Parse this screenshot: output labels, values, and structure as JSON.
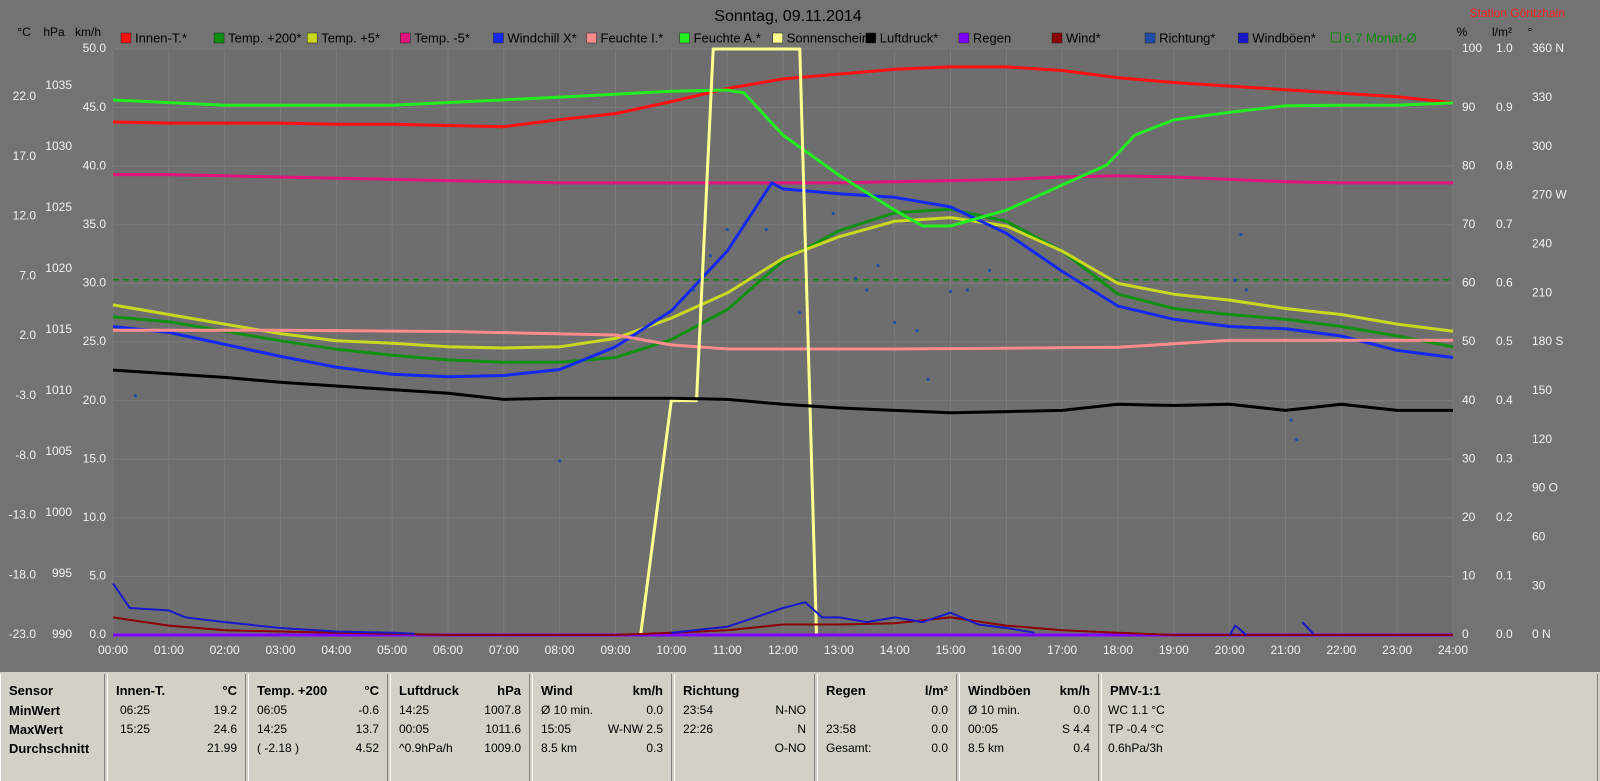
{
  "chart_data": {
    "type": "line",
    "title": "Sonntag, 09.11.2014",
    "station": "Station Göritzhain",
    "xlim": [
      0,
      24
    ],
    "xticks": [
      {
        "value": 0,
        "label": "00:00"
      },
      {
        "value": 1,
        "label": "01:00"
      },
      {
        "value": 2,
        "label": "02:00"
      },
      {
        "value": 3,
        "label": "03:00"
      },
      {
        "value": 4,
        "label": "04:00"
      },
      {
        "value": 5,
        "label": "05:00"
      },
      {
        "value": 6,
        "label": "06:00"
      },
      {
        "value": 7,
        "label": "07:00"
      },
      {
        "value": 8,
        "label": "08:00"
      },
      {
        "value": 9,
        "label": "09:00"
      },
      {
        "value": 10,
        "label": "10:00"
      },
      {
        "value": 11,
        "label": "11:00"
      },
      {
        "value": 12,
        "label": "12:00"
      },
      {
        "value": 13,
        "label": "13:00"
      },
      {
        "value": 14,
        "label": "14:00"
      },
      {
        "value": 15,
        "label": "15:00"
      },
      {
        "value": 16,
        "label": "16:00"
      },
      {
        "value": 17,
        "label": "17:00"
      },
      {
        "value": 18,
        "label": "18:00"
      },
      {
        "value": 19,
        "label": "19:00"
      },
      {
        "value": 20,
        "label": "20:00"
      },
      {
        "value": 21,
        "label": "21:00"
      },
      {
        "value": 22,
        "label": "22:00"
      },
      {
        "value": 23,
        "label": "23:00"
      },
      {
        "value": 24,
        "label": "24:00"
      }
    ],
    "grid": true,
    "y_axes": [
      {
        "unit": "°C",
        "lim": [
          -23,
          26
        ],
        "ticks": [
          {
            "value": -23,
            "label": "-23.0"
          },
          {
            "value": -18,
            "label": "-18.0"
          },
          {
            "value": -13,
            "label": "-13.0"
          },
          {
            "value": -8,
            "label": "-8.0"
          },
          {
            "value": -3,
            "label": "-3.0"
          },
          {
            "value": 2,
            "label": "2.0"
          },
          {
            "value": 7,
            "label": "7.0"
          },
          {
            "value": 12,
            "label": "12.0"
          },
          {
            "value": 17,
            "label": "17.0"
          },
          {
            "value": 22,
            "label": "22.0"
          }
        ]
      },
      {
        "unit": "hPa",
        "lim": [
          990,
          1038
        ],
        "ticks": [
          990,
          995,
          1000,
          1005,
          1010,
          1015,
          1020,
          1025,
          1030,
          1035
        ]
      },
      {
        "unit": "km/h",
        "lim": [
          0,
          50
        ],
        "grid": true,
        "ticks": [
          {
            "value": 0,
            "label": "0.0"
          },
          {
            "value": 5,
            "label": "5.0"
          },
          {
            "value": 10,
            "label": "10.0"
          },
          {
            "value": 15,
            "label": "15.0"
          },
          {
            "value": 20,
            "label": "20.0"
          },
          {
            "value": 25,
            "label": "25.0"
          },
          {
            "value": 30,
            "label": "30.0"
          },
          {
            "value": 35,
            "label": "35.0"
          },
          {
            "value": 40,
            "label": "40.0"
          },
          {
            "value": 45,
            "label": "45.0"
          },
          {
            "value": 50,
            "label": "50.0"
          }
        ]
      },
      {
        "unit": "%",
        "lim": [
          0,
          100
        ],
        "ticks": [
          0,
          10,
          20,
          30,
          40,
          50,
          60,
          70,
          80,
          90,
          100
        ]
      },
      {
        "unit": "l/m²",
        "lim": [
          0,
          1
        ],
        "ticks": [
          {
            "value": 0,
            "label": "0.0"
          },
          0.1,
          0.2,
          0.3,
          0.4,
          0.5,
          0.6,
          0.7,
          0.8,
          0.9,
          {
            "value": 1,
            "label": "1.0"
          }
        ]
      },
      {
        "unit": "°",
        "lim": [
          0,
          360
        ],
        "ticks": [
          {
            "value": 0,
            "label": "0 N"
          },
          30,
          60,
          {
            "value": 90,
            "label": "90 O"
          },
          120,
          150,
          {
            "value": 180,
            "label": "180 S"
          },
          210,
          240,
          {
            "value": 270,
            "label": "270 W"
          },
          300,
          330,
          {
            "value": 360,
            "label": "360 N"
          }
        ]
      }
    ],
    "series": [
      {
        "name": "Innen-T.*",
        "color": "#ff1010",
        "axis": 0,
        "x": [
          0,
          1,
          2,
          3,
          4,
          5,
          6,
          7,
          8,
          9,
          10,
          11,
          12,
          13,
          14,
          15,
          16,
          17,
          18,
          19,
          20,
          21,
          22,
          23,
          24
        ],
        "values": [
          19.9,
          19.8,
          19.8,
          19.8,
          19.7,
          19.7,
          19.6,
          19.5,
          20.1,
          20.6,
          21.6,
          22.7,
          23.5,
          23.9,
          24.3,
          24.5,
          24.5,
          24.2,
          23.6,
          23.2,
          22.9,
          22.6,
          22.3,
          22.0,
          21.5
        ]
      },
      {
        "name": "Temp. +200*",
        "color": "#109010",
        "axis": 0,
        "x": [
          0,
          1,
          2,
          3,
          4,
          5,
          6,
          7,
          8,
          9,
          10,
          11,
          12,
          13,
          14,
          15,
          16,
          17,
          18,
          19,
          20,
          21,
          22,
          23,
          24
        ],
        "values": [
          3.6,
          3.2,
          2.4,
          1.6,
          0.9,
          0.4,
          0.0,
          -0.2,
          -0.2,
          0.2,
          1.7,
          4.2,
          8.3,
          10.8,
          12.3,
          12.6,
          11.6,
          9.1,
          5.5,
          4.3,
          3.8,
          3.4,
          2.8,
          2.0,
          1.1
        ]
      },
      {
        "name": "Temp. +5*",
        "color": "#c8d820",
        "axis": 0,
        "x": [
          0,
          1,
          2,
          3,
          4,
          5,
          6,
          7,
          8,
          9,
          10,
          11,
          12,
          13,
          14,
          15,
          16,
          17,
          18,
          19,
          20,
          21,
          22,
          23,
          24
        ],
        "values": [
          4.6,
          3.8,
          3.0,
          2.2,
          1.6,
          1.4,
          1.1,
          1.0,
          1.1,
          1.8,
          3.5,
          5.6,
          8.5,
          10.3,
          11.6,
          11.9,
          11.2,
          9.1,
          6.4,
          5.5,
          5.0,
          4.3,
          3.8,
          3.0,
          2.4
        ]
      },
      {
        "name": "Temp. -5*",
        "color": "#e0147c",
        "axis": 0,
        "x": [
          0,
          1,
          2,
          3,
          4,
          5,
          6,
          7,
          8,
          9,
          10,
          11,
          12,
          13,
          14,
          15,
          16,
          17,
          18,
          19,
          20,
          21,
          22,
          23,
          24
        ],
        "values": [
          15.5,
          15.5,
          15.4,
          15.3,
          15.2,
          15.1,
          15.0,
          14.9,
          14.8,
          14.8,
          14.8,
          14.8,
          14.8,
          14.8,
          14.9,
          15.0,
          15.1,
          15.3,
          15.4,
          15.3,
          15.1,
          14.9,
          14.8,
          14.8,
          14.8
        ]
      },
      {
        "name": "Windchill X*",
        "color": "#1428f0",
        "axis": 0,
        "x": [
          0,
          1,
          2,
          3,
          4,
          5,
          6,
          7,
          8,
          9,
          10,
          11,
          11.8,
          12,
          13,
          14,
          15,
          16,
          17,
          18,
          19,
          20,
          21,
          22,
          23,
          24
        ],
        "values": [
          2.8,
          2.3,
          1.3,
          0.3,
          -0.6,
          -1.2,
          -1.4,
          -1.3,
          -0.8,
          1.1,
          4.1,
          9.1,
          14.8,
          14.3,
          13.9,
          13.6,
          12.8,
          10.6,
          7.4,
          4.5,
          3.4,
          2.8,
          2.6,
          2.0,
          0.8,
          0.2
        ]
      },
      {
        "name": "Feuchte I.*",
        "color": "#ff8c8c",
        "axis": 3,
        "x": [
          0,
          3,
          6,
          9,
          10,
          11,
          14,
          18,
          19,
          20,
          24
        ],
        "values": [
          52.0,
          52.0,
          51.8,
          51.2,
          49.5,
          48.8,
          48.8,
          49.1,
          49.7,
          50.3,
          50.3
        ]
      },
      {
        "name": "Feuchte A.*",
        "color": "#22ee22",
        "axis": 3,
        "x": [
          0,
          2,
          5,
          8,
          10,
          11,
          11.3,
          12,
          13,
          14,
          14.5,
          15,
          16,
          17,
          17.8,
          18.3,
          19,
          20,
          21,
          22,
          23,
          24
        ],
        "values": [
          91.3,
          90.4,
          90.4,
          91.8,
          92.8,
          93.0,
          92.5,
          85.3,
          78.5,
          72.5,
          69.8,
          69.8,
          72.5,
          76.8,
          80.2,
          85.3,
          87.9,
          89.2,
          90.3,
          90.4,
          90.4,
          90.8
        ]
      },
      {
        "name": "Sonnenschein*",
        "color": "#ffff90",
        "axis": 3,
        "x": [
          0,
          9.45,
          10,
          10.45,
          10.75,
          12.3,
          12.6,
          24
        ],
        "values": [
          0,
          0,
          40,
          40,
          100,
          100,
          0,
          0
        ]
      },
      {
        "name": "Luftdruck*",
        "color": "#000000",
        "axis": 1,
        "x": [
          0,
          1,
          2,
          3,
          4,
          5,
          6,
          7,
          8,
          9,
          10,
          11,
          12,
          13,
          14,
          15,
          16,
          17,
          18,
          19,
          20,
          21,
          22,
          23,
          24
        ],
        "values": [
          1011.7,
          1011.4,
          1011.1,
          1010.7,
          1010.4,
          1010.1,
          1009.8,
          1009.3,
          1009.4,
          1009.4,
          1009.4,
          1009.3,
          1008.9,
          1008.6,
          1008.4,
          1008.2,
          1008.3,
          1008.4,
          1008.9,
          1008.8,
          1008.9,
          1008.4,
          1008.9,
          1008.4,
          1008.4
        ]
      },
      {
        "name": "Regen",
        "color": "#8000ff",
        "axis": 4,
        "x": [
          0,
          24
        ],
        "values": [
          0,
          0
        ]
      },
      {
        "name": "Wind*",
        "color": "#8b0000",
        "axis": 2,
        "x": [
          0,
          1,
          2,
          3,
          4,
          5,
          6,
          7,
          8,
          9,
          10,
          11,
          12,
          13,
          14,
          15,
          16,
          17,
          18,
          19,
          20,
          21,
          22,
          23,
          24
        ],
        "values": [
          1.5,
          0.8,
          0.4,
          0.3,
          0.2,
          0.1,
          0,
          0,
          0,
          0,
          0.2,
          0.4,
          0.9,
          0.9,
          1.0,
          1.5,
          0.8,
          0.4,
          0.2,
          0,
          0,
          0,
          0,
          0,
          0
        ]
      },
      {
        "name": "Richtung*",
        "color": "#1e4ea8",
        "axis": 5,
        "type": "scatter",
        "x": [
          0.4,
          8.0,
          10.4,
          10.7,
          11.0,
          11.7,
          12.3,
          12.9,
          13.3,
          13.5,
          13.7,
          14.0,
          14.4,
          14.6,
          15.0,
          15.3,
          15.7,
          20.1,
          20.2,
          20.3,
          21.1,
          21.2
        ],
        "values": [
          147,
          107,
          212,
          233,
          249,
          249,
          198,
          259,
          219,
          212,
          227,
          192,
          187,
          157,
          211,
          212,
          224,
          218,
          246,
          212,
          132,
          120
        ]
      },
      {
        "name": "Windböen*",
        "color": "#1818c8",
        "axis": 2,
        "x": [
          0,
          0.3,
          1,
          1.3,
          2,
          3,
          4,
          5,
          5.4,
          6,
          10,
          11,
          11.5,
          12,
          12.4,
          12.7,
          13,
          13.5,
          14,
          14.5,
          15,
          15.5,
          16,
          16.5,
          17,
          20,
          20.1,
          20.3,
          21,
          21.3,
          21.5
        ],
        "values": [
          4.4,
          2.3,
          2.1,
          1.5,
          1.1,
          0.6,
          0.3,
          0.2,
          0.1,
          null,
          0.2,
          0.7,
          1.5,
          2.3,
          2.8,
          1.5,
          1.5,
          1.1,
          1.5,
          1.1,
          1.9,
          0.9,
          0.6,
          0.2,
          null,
          0,
          0.8,
          0,
          null,
          1.1,
          0.1
        ]
      }
    ],
    "monthly_avg": {
      "value": 6.7,
      "label": "6.7 Monat-Ø",
      "color": "#0a8a0a",
      "axis": 0
    }
  },
  "table": {
    "panels": [
      {
        "title": "Sensor",
        "unit": null,
        "rows": [
          "MinWert",
          "MaxWert",
          "Durchschnitt"
        ]
      },
      {
        "title": "Innen-T.",
        "unit": "°C",
        "rows": [
          [
            "06:25",
            "19.2"
          ],
          [
            "15:25",
            "24.6"
          ],
          [
            null,
            "21.99"
          ]
        ]
      },
      {
        "title": "Temp. +200",
        "unit": "°C",
        "rows": [
          [
            "06:05",
            "-0.6"
          ],
          [
            "14:25",
            "13.7"
          ],
          [
            "( -2.18 )",
            "4.52"
          ]
        ]
      },
      {
        "title": "Luftdruck",
        "unit": "hPa",
        "rows": [
          [
            "14:25",
            "1007.8"
          ],
          [
            "00:05",
            "1011.6"
          ],
          [
            "^0.9hPa/h",
            "1009.0"
          ]
        ]
      },
      {
        "title": "Wind",
        "unit": "km/h",
        "rows": [
          [
            "Ø 10 min.",
            "0.0"
          ],
          [
            "15:05",
            "W-NW 2.5"
          ],
          [
            "8.5 km",
            "0.3"
          ]
        ]
      },
      {
        "title": "Richtung",
        "unit": null,
        "rows": [
          [
            "23:54",
            "N-NO"
          ],
          [
            "22:26",
            "N"
          ],
          [
            null,
            "O-NO"
          ]
        ]
      },
      {
        "title": "Regen",
        "unit": "l/m²",
        "rows": [
          [
            null,
            "0.0"
          ],
          [
            "23:58",
            "0.0"
          ],
          [
            "Gesamt:",
            "0.0"
          ]
        ]
      },
      {
        "title": "Windböen",
        "unit": "km/h",
        "rows": [
          [
            "Ø 10 min.",
            "0.0"
          ],
          [
            "00:05",
            "S 4.4"
          ],
          [
            "8.5 km",
            "0.4"
          ]
        ]
      },
      {
        "title": "PMV-1:1",
        "unit": null,
        "rows": [
          "WC 1.1 °C",
          "TP -0.4 °C",
          "0.6hPa/3h"
        ]
      }
    ]
  }
}
